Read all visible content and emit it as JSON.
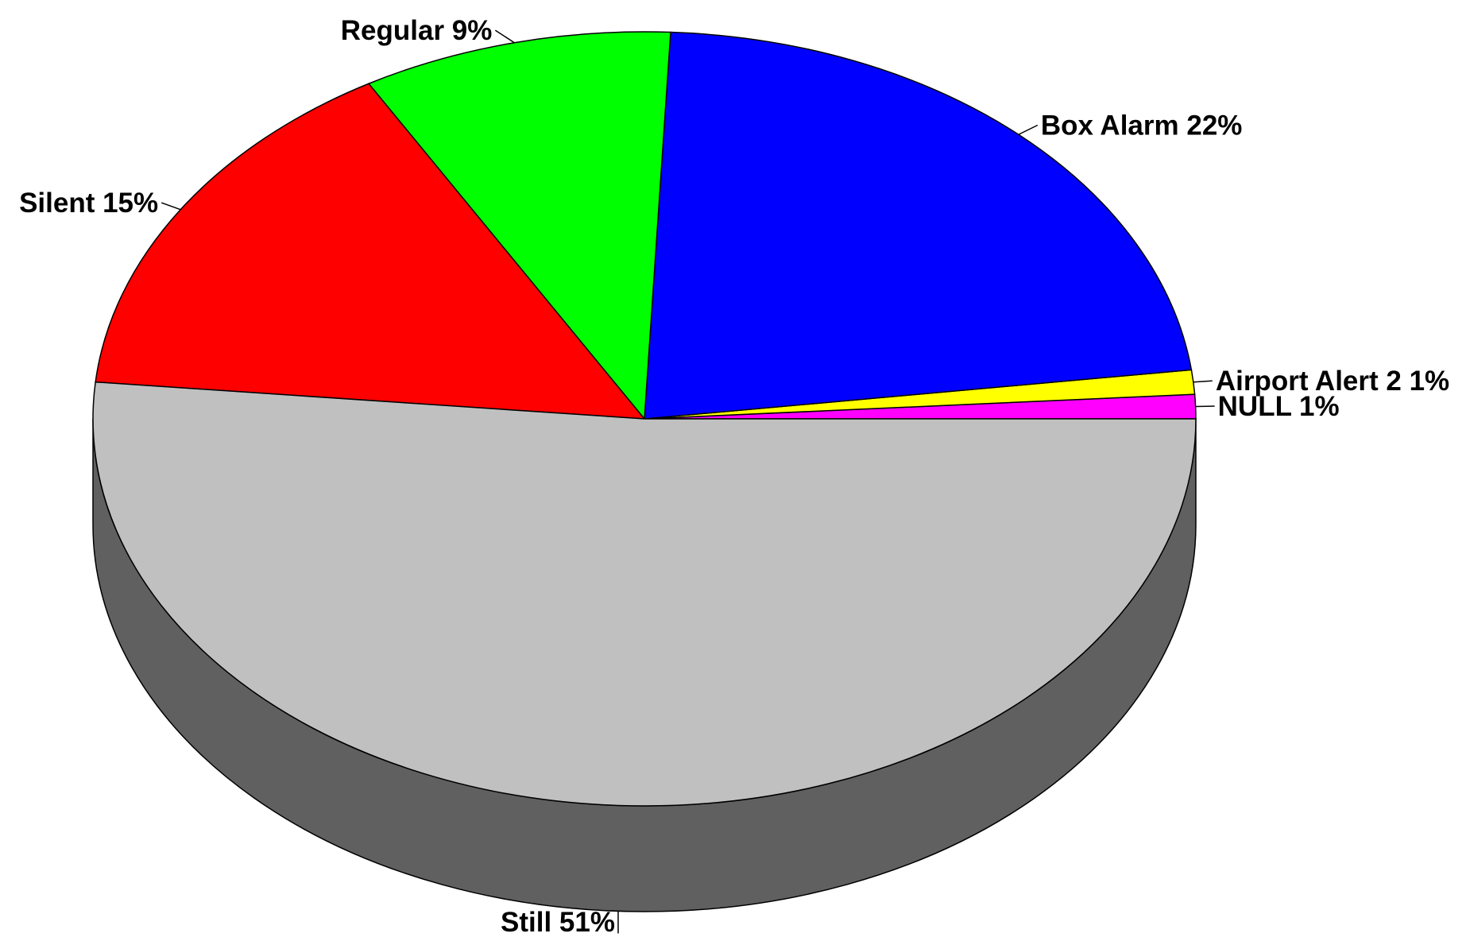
{
  "chart_data": {
    "type": "pie",
    "style": "3d",
    "start_angle_deg": 0,
    "direction": "counterclockwise",
    "slices": [
      {
        "label": "NULL 1%",
        "value": 1,
        "color": "#ff00ff"
      },
      {
        "label": "Airport Alert 2 1%",
        "value": 1,
        "color": "#ffff00"
      },
      {
        "label": "Box Alarm 22%",
        "value": 22,
        "color": "#0000ff"
      },
      {
        "label": "Regular 9%",
        "value": 9,
        "color": "#00ff00"
      },
      {
        "label": "Silent 15%",
        "value": 15,
        "color": "#ff0000"
      },
      {
        "label": "Still 51%",
        "value": 51,
        "color": "#c0c0c0"
      }
    ],
    "side_color": "#606060",
    "background": "#ffffff"
  }
}
